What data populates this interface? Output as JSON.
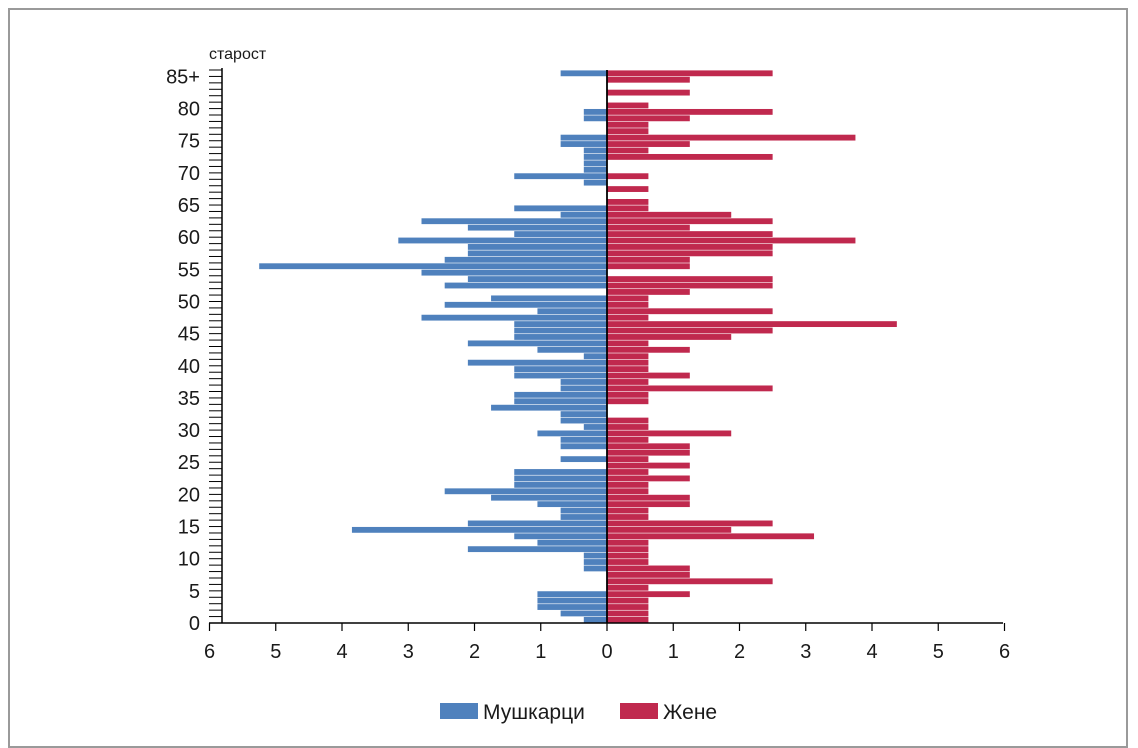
{
  "chart_data": {
    "type": "bar",
    "orientation": "horizontal",
    "subtype": "population-pyramid",
    "ylabel": "старост",
    "y_tick_labels": [
      "0",
      "5",
      "10",
      "15",
      "20",
      "25",
      "30",
      "35",
      "40",
      "45",
      "50",
      "55",
      "60",
      "65",
      "70",
      "75",
      "80",
      "85+"
    ],
    "x_tick_labels": [
      "6",
      "5",
      "4",
      "3",
      "2",
      "1",
      "0",
      "1",
      "2",
      "3",
      "4",
      "5",
      "6"
    ],
    "xlim": [
      -6,
      6
    ],
    "grid": false,
    "legend_position": "bottom-center",
    "colors": {
      "male": "#4f81bd",
      "female": "#c0294e",
      "axis": "#000000"
    },
    "series": [
      {
        "name": "Мушкарци",
        "color": "#4f81bd",
        "values": [
          0.35,
          0.7,
          1.05,
          1.05,
          1.05,
          0.0,
          0.0,
          0.0,
          0.35,
          0.35,
          0.35,
          2.1,
          1.05,
          1.4,
          3.85,
          2.1,
          0.7,
          0.7,
          1.05,
          1.75,
          2.45,
          1.4,
          1.4,
          1.4,
          0.0,
          0.7,
          0.0,
          0.7,
          0.7,
          1.05,
          0.35,
          0.7,
          0.7,
          1.75,
          1.4,
          1.4,
          0.7,
          0.7,
          1.4,
          1.4,
          2.1,
          0.35,
          1.05,
          2.1,
          1.4,
          1.4,
          1.4,
          2.8,
          1.05,
          2.45,
          1.75,
          0.0,
          2.45,
          2.1,
          2.8,
          5.25,
          2.45,
          2.1,
          2.1,
          3.15,
          1.4,
          2.1,
          2.8,
          0.7,
          1.4,
          0.0,
          0.0,
          0.0,
          0.35,
          1.4,
          0.35,
          0.35,
          0.35,
          0.35,
          0.7,
          0.7,
          0.0,
          0.0,
          0.35,
          0.35,
          0.0,
          0.0,
          0.0,
          0.0,
          0.0,
          0.7
        ]
      },
      {
        "name": "Жене",
        "color": "#c0294e",
        "values": [
          0.625,
          0.625,
          0.625,
          0.625,
          1.25,
          0.625,
          2.5,
          1.25,
          1.25,
          0.625,
          0.625,
          0.625,
          0.625,
          3.125,
          1.875,
          2.5,
          0.625,
          0.625,
          1.25,
          1.25,
          0.625,
          0.625,
          1.25,
          0.625,
          1.25,
          0.625,
          1.25,
          1.25,
          0.625,
          1.875,
          0.625,
          0.625,
          0.0,
          0.0,
          0.625,
          0.625,
          2.5,
          0.625,
          1.25,
          0.625,
          0.625,
          0.625,
          1.25,
          0.625,
          1.875,
          2.5,
          4.375,
          0.625,
          2.5,
          0.625,
          0.625,
          1.25,
          2.5,
          2.5,
          0.0,
          1.25,
          1.25,
          2.5,
          2.5,
          3.75,
          2.5,
          1.25,
          2.5,
          1.875,
          0.625,
          0.625,
          0.0,
          0.625,
          0.0,
          0.625,
          0.0,
          0.0,
          2.5,
          0.625,
          1.25,
          3.75,
          0.625,
          0.625,
          1.25,
          2.5,
          0.625,
          0.0,
          1.25,
          0.0,
          1.25,
          2.5
        ]
      }
    ],
    "legend": [
      {
        "label": "Мушкарци",
        "color": "#4f81bd"
      },
      {
        "label": "Жене",
        "color": "#c0294e"
      }
    ]
  }
}
